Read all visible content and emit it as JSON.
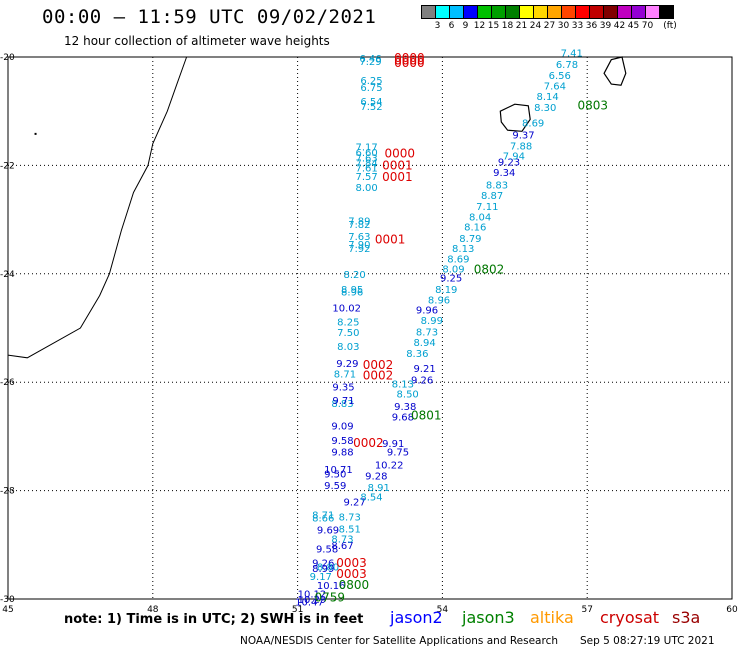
{
  "header": {
    "title": "00:00 – 11:59 UTC 09/02/2021",
    "subtitle": "12 hour collection of altimeter wave heights"
  },
  "legend": {
    "unit": "(ft)",
    "colors": [
      "#808080",
      "#00ffff",
      "#00bfff",
      "#0000ff",
      "#00c000",
      "#00a000",
      "#008000",
      "#ffff00",
      "#ffd700",
      "#ffa500",
      "#ff4500",
      "#ff0000",
      "#c00000",
      "#800000",
      "#c000c0",
      "#9400d3",
      "#ff80ff",
      "#000000"
    ],
    "labels": [
      "3",
      "6",
      "9",
      "12",
      "15",
      "18",
      "21",
      "24",
      "27",
      "30",
      "33",
      "36",
      "39",
      "42",
      "45",
      "70"
    ]
  },
  "footer": {
    "note": "note:  1) Time is in UTC;  2) SWH is in feet",
    "satellites": [
      {
        "name": "jason2",
        "color": "#0000ff"
      },
      {
        "name": "jason3",
        "color": "#008000"
      },
      {
        "name": "altika",
        "color": "#ff9900"
      },
      {
        "name": "cryosat",
        "color": "#cc0000"
      },
      {
        "name": "s3a",
        "color": "#990000"
      }
    ],
    "credit": "NOAA/NESDIS Center for Satellite Applications and Research",
    "timestamp": "Sep  5 08:27:19 UTC 2021"
  },
  "chart_data": {
    "type": "scatter",
    "x_ticks": [
      "45",
      "48",
      "51",
      "54",
      "57",
      "60"
    ],
    "y_ticks": [
      "-20",
      "-22",
      "-24",
      "-26",
      "-28",
      "-30"
    ],
    "xlim": [
      45,
      60
    ],
    "ylim": [
      -30,
      -20
    ],
    "grid": true,
    "tracks": [
      {
        "name": "jason3_west_cyan",
        "color": "#00a0d0",
        "points": [
          {
            "lon": 52.28,
            "lat": -20.02,
            "text": "6.46"
          },
          {
            "lon": 52.28,
            "lat": -20.07,
            "text": "7.29"
          },
          {
            "lon": 52.3,
            "lat": -20.42,
            "text": "6.25"
          },
          {
            "lon": 52.3,
            "lat": -20.55,
            "text": "6.75"
          },
          {
            "lon": 52.3,
            "lat": -20.81,
            "text": "6.54"
          },
          {
            "lon": 52.3,
            "lat": -20.9,
            "text": "7.52"
          },
          {
            "lon": 52.2,
            "lat": -21.65,
            "text": "7.17"
          },
          {
            "lon": 52.2,
            "lat": -21.75,
            "text": "6.60"
          },
          {
            "lon": 52.2,
            "lat": -21.85,
            "text": "7.63"
          },
          {
            "lon": 52.2,
            "lat": -21.95,
            "text": "7.84"
          },
          {
            "lon": 52.2,
            "lat": -22.04,
            "text": "7.61"
          },
          {
            "lon": 52.2,
            "lat": -22.2,
            "text": "7.57"
          },
          {
            "lon": 52.2,
            "lat": -22.4,
            "text": "8.00"
          },
          {
            "lon": 52.05,
            "lat": -23.02,
            "text": "7.89"
          },
          {
            "lon": 52.05,
            "lat": -23.08,
            "text": "7.82"
          },
          {
            "lon": 52.05,
            "lat": -23.3,
            "text": "7.63"
          },
          {
            "lon": 52.05,
            "lat": -23.45,
            "text": "7.90"
          },
          {
            "lon": 52.05,
            "lat": -23.52,
            "text": "7.92"
          },
          {
            "lon": 51.95,
            "lat": -24.0,
            "text": "8.20"
          },
          {
            "lon": 51.9,
            "lat": -24.28,
            "text": "8.95"
          },
          {
            "lon": 51.9,
            "lat": -24.33,
            "text": "8.96"
          },
          {
            "lon": 51.82,
            "lat": -24.88,
            "text": "8.25"
          },
          {
            "lon": 51.82,
            "lat": -25.07,
            "text": "7.50"
          },
          {
            "lon": 51.82,
            "lat": -25.33,
            "text": "8.03"
          },
          {
            "lon": 51.75,
            "lat": -25.84,
            "text": "8.71"
          },
          {
            "lon": 51.7,
            "lat": -26.38,
            "text": "8.83"
          },
          {
            "lon": 51.3,
            "lat": -28.44,
            "text": "8.71"
          },
          {
            "lon": 51.3,
            "lat": -28.5,
            "text": "8.66"
          },
          {
            "lon": 51.25,
            "lat": -29.58,
            "text": "9.17"
          }
        ]
      },
      {
        "name": "jason2_west_blue",
        "color": "#0000cc",
        "points": [
          {
            "lon": 51.72,
            "lat": -24.62,
            "text": "10.02"
          },
          {
            "lon": 51.8,
            "lat": -25.65,
            "text": "9.29"
          },
          {
            "lon": 51.72,
            "lat": -26.08,
            "text": "9.35"
          },
          {
            "lon": 51.72,
            "lat": -26.33,
            "text": "9.71"
          },
          {
            "lon": 51.7,
            "lat": -26.8,
            "text": "9.09"
          },
          {
            "lon": 51.7,
            "lat": -27.07,
            "text": "9.58"
          },
          {
            "lon": 51.7,
            "lat": -27.28,
            "text": "9.88"
          },
          {
            "lon": 51.55,
            "lat": -27.6,
            "text": "10.71"
          },
          {
            "lon": 51.55,
            "lat": -27.68,
            "text": "9.50"
          },
          {
            "lon": 51.55,
            "lat": -27.9,
            "text": "9.59"
          },
          {
            "lon": 51.4,
            "lat": -28.72,
            "text": "9.69"
          },
          {
            "lon": 51.38,
            "lat": -29.07,
            "text": "9.58"
          },
          {
            "lon": 51.3,
            "lat": -29.33,
            "text": "9.26"
          },
          {
            "lon": 51.3,
            "lat": -29.43,
            "text": "8.99"
          },
          {
            "lon": 51.4,
            "lat": -29.74,
            "text": "10.16"
          },
          {
            "lon": 51.0,
            "lat": -29.9,
            "text": "10.12"
          },
          {
            "lon": 51.0,
            "lat": -30.0,
            "text": "10.29"
          },
          {
            "lon": 50.95,
            "lat": -30.05,
            "text": "10.47"
          }
        ]
      },
      {
        "name": "jason2_east_blue",
        "color": "#0000cc",
        "points": [
          {
            "lon": 55.45,
            "lat": -21.43,
            "text": "9.37"
          },
          {
            "lon": 55.15,
            "lat": -21.93,
            "text": "9.23"
          },
          {
            "lon": 55.05,
            "lat": -22.12,
            "text": "9.34"
          },
          {
            "lon": 53.95,
            "lat": -24.07,
            "text": "9.25"
          },
          {
            "lon": 53.45,
            "lat": -24.66,
            "text": "9.96"
          },
          {
            "lon": 53.4,
            "lat": -25.74,
            "text": "9.21"
          },
          {
            "lon": 53.35,
            "lat": -25.95,
            "text": "9.26"
          },
          {
            "lon": 53.0,
            "lat": -26.44,
            "text": "9.38"
          },
          {
            "lon": 52.95,
            "lat": -26.63,
            "text": "9.68"
          },
          {
            "lon": 52.75,
            "lat": -27.12,
            "text": "9.91"
          },
          {
            "lon": 52.85,
            "lat": -27.28,
            "text": "9.75"
          },
          {
            "lon": 52.6,
            "lat": -27.52,
            "text": "10.22"
          },
          {
            "lon": 52.4,
            "lat": -27.72,
            "text": "9.28"
          },
          {
            "lon": 51.95,
            "lat": -28.2,
            "text": "9.27"
          },
          {
            "lon": 51.7,
            "lat": -29.0,
            "text": "8.67"
          }
        ]
      },
      {
        "name": "cyan_east",
        "color": "#00a0d0",
        "points": [
          {
            "lon": 56.45,
            "lat": -19.92,
            "text": "7.41"
          },
          {
            "lon": 56.35,
            "lat": -20.13,
            "text": "6.78"
          },
          {
            "lon": 56.2,
            "lat": -20.33,
            "text": "6.56"
          },
          {
            "lon": 56.1,
            "lat": -20.53,
            "text": "7.64"
          },
          {
            "lon": 55.95,
            "lat": -20.72,
            "text": "8.14"
          },
          {
            "lon": 55.9,
            "lat": -20.92,
            "text": "8.30"
          },
          {
            "lon": 55.65,
            "lat": -21.21,
            "text": "8.69"
          },
          {
            "lon": 55.4,
            "lat": -21.63,
            "text": "7.88"
          },
          {
            "lon": 55.25,
            "lat": -21.82,
            "text": "7.94"
          },
          {
            "lon": 54.9,
            "lat": -22.35,
            "text": "8.83"
          },
          {
            "lon": 54.8,
            "lat": -22.55,
            "text": "8.87"
          },
          {
            "lon": 54.7,
            "lat": -22.75,
            "text": "7.11"
          },
          {
            "lon": 54.55,
            "lat": -22.94,
            "text": "8.04"
          },
          {
            "lon": 54.45,
            "lat": -23.13,
            "text": "8.16"
          },
          {
            "lon": 54.35,
            "lat": -23.34,
            "text": "8.79"
          },
          {
            "lon": 54.2,
            "lat": -23.52,
            "text": "8.13"
          },
          {
            "lon": 54.1,
            "lat": -23.72,
            "text": "8.69"
          },
          {
            "lon": 54.0,
            "lat": -23.9,
            "text": "8.09"
          },
          {
            "lon": 53.85,
            "lat": -24.28,
            "text": "8.19"
          },
          {
            "lon": 53.7,
            "lat": -24.47,
            "text": "8.96"
          },
          {
            "lon": 53.55,
            "lat": -24.85,
            "text": "8.99"
          },
          {
            "lon": 53.45,
            "lat": -25.06,
            "text": "8.73"
          },
          {
            "lon": 53.4,
            "lat": -25.26,
            "text": "8.94"
          },
          {
            "lon": 53.25,
            "lat": -25.46,
            "text": "8.36"
          },
          {
            "lon": 52.95,
            "lat": -26.02,
            "text": "8.13"
          },
          {
            "lon": 53.05,
            "lat": -26.21,
            "text": "8.50"
          },
          {
            "lon": 52.45,
            "lat": -27.93,
            "text": "8.91"
          },
          {
            "lon": 52.3,
            "lat": -28.11,
            "text": "8.54"
          },
          {
            "lon": 51.85,
            "lat": -28.48,
            "text": "8.73"
          },
          {
            "lon": 51.85,
            "lat": -28.7,
            "text": "8.51"
          },
          {
            "lon": 51.7,
            "lat": -28.88,
            "text": "8.73"
          },
          {
            "lon": 51.4,
            "lat": -29.4,
            "text": "8.80"
          }
        ]
      }
    ],
    "time_labels": [
      {
        "lon": 53.0,
        "lat": -20.0,
        "text": "0000",
        "color": "#dd0000"
      },
      {
        "lon": 53.0,
        "lat": -20.05,
        "text": "0000",
        "color": "#dd0000"
      },
      {
        "lon": 53.0,
        "lat": -20.09,
        "text": "0000",
        "color": "#dd0000"
      },
      {
        "lon": 52.8,
        "lat": -21.76,
        "text": "0000",
        "color": "#dd0000"
      },
      {
        "lon": 52.75,
        "lat": -21.98,
        "text": "0001",
        "color": "#dd0000"
      },
      {
        "lon": 52.75,
        "lat": -22.2,
        "text": "0001",
        "color": "#dd0000"
      },
      {
        "lon": 52.6,
        "lat": -23.35,
        "text": "0001",
        "color": "#dd0000"
      },
      {
        "lon": 52.35,
        "lat": -25.66,
        "text": "0002",
        "color": "#dd0000"
      },
      {
        "lon": 52.35,
        "lat": -25.86,
        "text": "0002",
        "color": "#dd0000"
      },
      {
        "lon": 52.15,
        "lat": -27.1,
        "text": "0002",
        "color": "#dd0000"
      },
      {
        "lon": 51.8,
        "lat": -29.32,
        "text": "0003",
        "color": "#dd0000"
      },
      {
        "lon": 51.8,
        "lat": -29.52,
        "text": "0003",
        "color": "#dd0000"
      },
      {
        "lon": 56.8,
        "lat": -20.88,
        "text": "0803",
        "color": "#007700"
      },
      {
        "lon": 54.65,
        "lat": -23.9,
        "text": "0802",
        "color": "#007700"
      },
      {
        "lon": 53.35,
        "lat": -26.6,
        "text": "0801",
        "color": "#007700"
      },
      {
        "lon": 51.85,
        "lat": -29.72,
        "text": "0800",
        "color": "#007700"
      },
      {
        "lon": 51.35,
        "lat": -29.95,
        "text": "0759",
        "color": "#007700"
      }
    ]
  }
}
